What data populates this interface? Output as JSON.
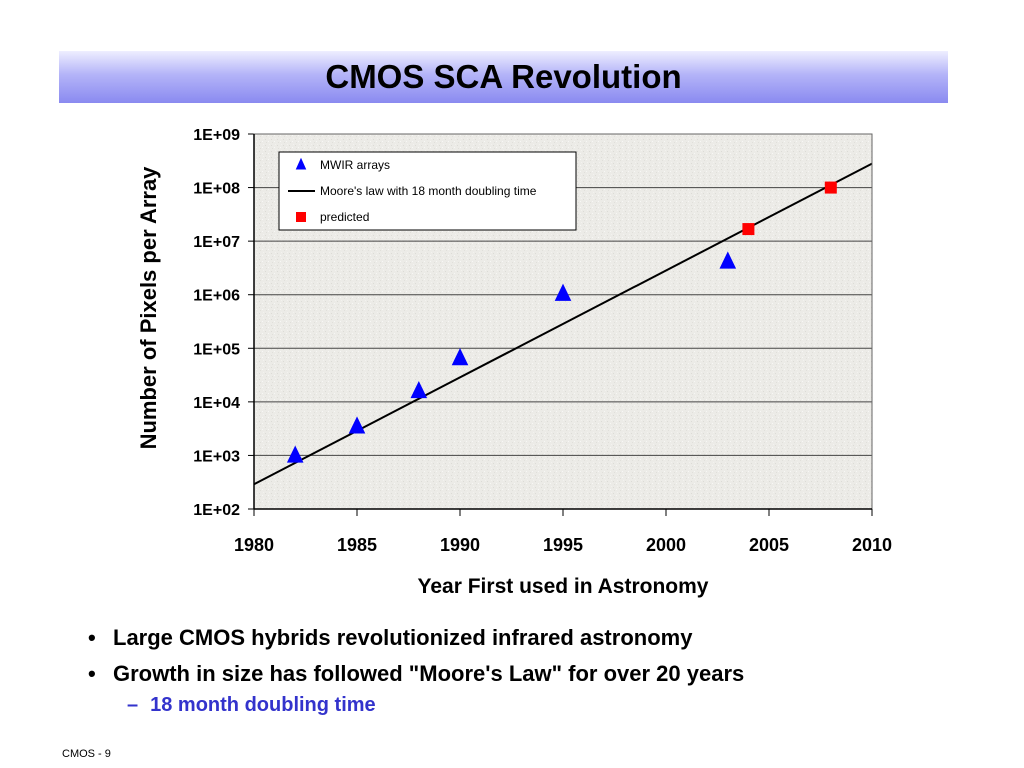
{
  "slide": {
    "title": "CMOS SCA Revolution",
    "bullets": [
      "Large CMOS hybrids revolutionized infrared astronomy",
      "Growth in size has followed \"Moore's Law\" for over 20 years"
    ],
    "sub_bullet": "18 month doubling time",
    "footer": "CMOS - 9"
  },
  "colors": {
    "title_gradient_light": "#eeeeff",
    "title_gradient_dark": "#8a8af0",
    "mwir_marker": "#0000ff",
    "predicted_marker": "#ff0000",
    "trend_line": "#000000",
    "sub_bullet_text": "#3333cc"
  },
  "chart_data": {
    "type": "scatter",
    "title": "",
    "xlabel": "Year First used in Astronomy",
    "ylabel": "Number of Pixels per Array",
    "xlim": [
      1980,
      2010
    ],
    "ylim_log10": [
      2,
      9
    ],
    "yscale": "log",
    "x_ticks": [
      1980,
      1985,
      1990,
      1995,
      2000,
      2005,
      2010
    ],
    "y_ticks": [
      100,
      1000,
      10000,
      100000,
      1000000,
      10000000,
      100000000,
      1000000000
    ],
    "y_tick_labels": [
      "1E+02",
      "1E+03",
      "1E+04",
      "1E+05",
      "1E+06",
      "1E+07",
      "1E+08",
      "1E+09"
    ],
    "grid": "horizontal",
    "legend_position": "top-left",
    "series": [
      {
        "name": "MWIR arrays",
        "marker": "triangle",
        "x": [
          1982,
          1985,
          1988,
          1990,
          1995,
          2003
        ],
        "y": [
          1000,
          3500,
          16000,
          66000,
          1050000,
          4200000
        ]
      },
      {
        "name": "Moore's law with 18 month doubling time",
        "marker": "line",
        "x": [
          1980,
          2010
        ],
        "y": [
          290,
          280000000
        ]
      },
      {
        "name": "predicted",
        "marker": "square",
        "x": [
          2004,
          2008
        ],
        "y": [
          16800000,
          100000000
        ]
      }
    ]
  }
}
